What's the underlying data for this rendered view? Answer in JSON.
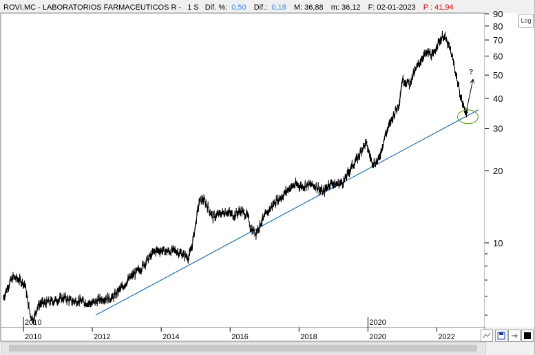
{
  "header": {
    "ticker": "ROVI.MC - LABORATORIOS FARMACEUTICOS R -",
    "timeframe": "1 S",
    "dif_pct_label": "Dif. %:",
    "dif_pct_value": "0,50",
    "dif_label": "Dif.:",
    "dif_value": "0,18",
    "max_text": "M: 36,88",
    "min_text": "m: 36,12",
    "date_text": "F: 02-01-2023",
    "price_text": "P : 41,94"
  },
  "colors": {
    "price_line": "#000000",
    "trend_line": "#1f6fb5",
    "circle": "#6aaa2a",
    "highlight_blue": "#3a8ee6",
    "highlight_red": "#e00000"
  },
  "toolbar": {
    "log_label": "Log"
  },
  "chart_data": {
    "type": "line",
    "title": "ROVI.MC - LABORATORIOS FARMACEUTICOS R -",
    "xlabel": "",
    "ylabel": "",
    "yscale": "log",
    "xlim": [
      2009.4,
      2023.35
    ],
    "ylim": [
      4.5,
      90
    ],
    "ytick_labels": [
      "10",
      "20",
      "30",
      "40",
      "50",
      "60",
      "70",
      "80",
      "90"
    ],
    "ytick_values": [
      10,
      20,
      30,
      40,
      50,
      60,
      70,
      80,
      90
    ],
    "xtick_labels": [
      "2010",
      "2012",
      "2014",
      "2016",
      "2018",
      "2020",
      "2022"
    ],
    "xtick_values": [
      2010,
      2012,
      2014,
      2016,
      2018,
      2020,
      2022
    ],
    "inner_year_labels": [
      "2010",
      "2020"
    ],
    "series": [
      {
        "x": [
          2009.42,
          2009.55,
          2009.7,
          2009.8,
          2009.95,
          2010.05,
          2010.1,
          2010.2,
          2010.3,
          2010.4,
          2010.5,
          2010.6,
          2010.8,
          2011.0,
          2011.2,
          2011.4,
          2011.6,
          2011.8,
          2012.0,
          2012.2,
          2012.4,
          2012.6,
          2012.75,
          2012.9,
          2013.0,
          2013.2,
          2013.4,
          2013.6,
          2013.8,
          2013.9,
          2014.0,
          2014.2,
          2014.4,
          2014.6,
          2014.8,
          2014.9,
          2015.0,
          2015.1,
          2015.2,
          2015.3,
          2015.5,
          2015.7,
          2015.9,
          2016.1,
          2016.3,
          2016.5,
          2016.6,
          2016.75,
          2016.9,
          2017.1,
          2017.3,
          2017.5,
          2017.7,
          2017.9,
          2018.1,
          2018.3,
          2018.5,
          2018.7,
          2018.9,
          2019.1,
          2019.3,
          2019.5,
          2019.7,
          2019.85,
          2019.95,
          2020.1,
          2020.2,
          2020.3,
          2020.5,
          2020.7,
          2020.9,
          2021.0,
          2021.2,
          2021.4,
          2021.6,
          2021.75,
          2021.9,
          2022.0,
          2022.1,
          2022.2,
          2022.3,
          2022.4,
          2022.5,
          2022.6,
          2022.7,
          2022.8,
          2022.9
        ],
        "y": [
          5.9,
          6.6,
          7.2,
          7.1,
          6.9,
          6.7,
          6.0,
          5.0,
          4.8,
          5.4,
          5.6,
          5.6,
          5.7,
          5.8,
          5.9,
          5.7,
          5.75,
          5.65,
          5.6,
          5.8,
          5.9,
          5.9,
          6.3,
          6.6,
          6.9,
          7.4,
          7.8,
          8.5,
          9.2,
          9.3,
          9.3,
          9.2,
          9.3,
          9.0,
          8.7,
          9.8,
          12.0,
          14.8,
          15.2,
          14.6,
          12.8,
          13.2,
          13.5,
          13.0,
          13.6,
          13.0,
          11.5,
          11.0,
          12.2,
          13.5,
          14.8,
          15.6,
          16.8,
          17.5,
          17.2,
          17.5,
          17.2,
          16.2,
          17.8,
          17.5,
          18.0,
          20.5,
          22.5,
          25.0,
          26.0,
          22.0,
          21.5,
          22.0,
          28.0,
          33.0,
          38.0,
          48.0,
          46.0,
          53.0,
          60.0,
          62.0,
          60.0,
          67.0,
          70.0,
          73.0,
          68.0,
          63.0,
          55.0,
          47.0,
          40.0,
          36.0,
          34.8
        ]
      }
    ],
    "trendline": {
      "x": [
        2012.1,
        2023.2
      ],
      "y": [
        5.0,
        35.8
      ]
    },
    "annotations": {
      "question_mark": "?",
      "arrow_from": [
        2022.85,
        35.0
      ],
      "arrow_to": [
        2023.05,
        48.0
      ],
      "circle_center": [
        2022.9,
        33.5
      ]
    }
  }
}
